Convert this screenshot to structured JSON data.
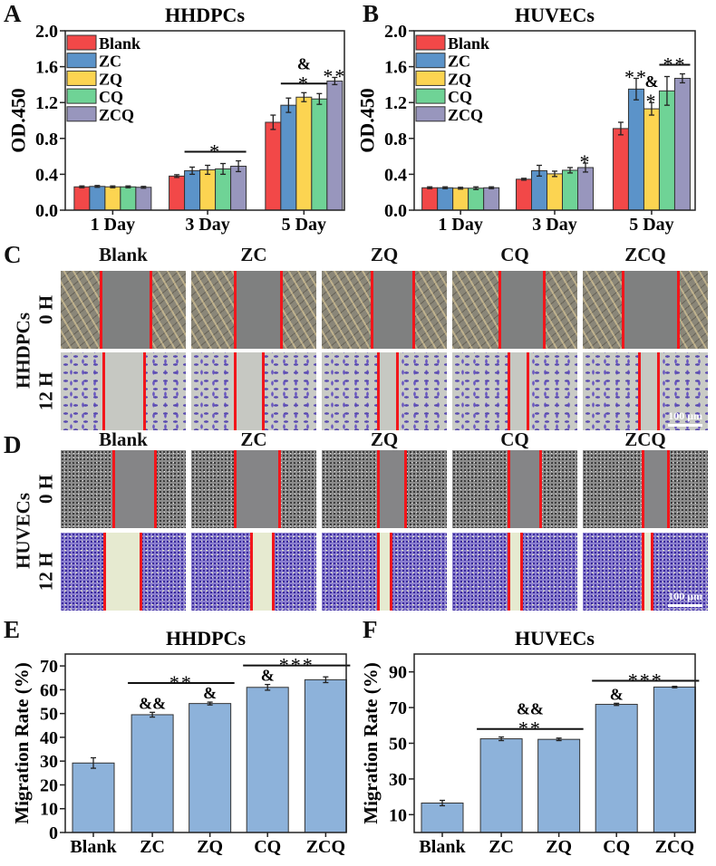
{
  "panel_letters": {
    "A": "A",
    "B": "B",
    "C": "C",
    "D": "D",
    "E": "E",
    "F": "F"
  },
  "groups": [
    "Blank",
    "ZC",
    "ZQ",
    "CQ",
    "ZCQ"
  ],
  "colors": {
    "Blank": "#f24848",
    "ZC": "#5b93c9",
    "ZQ": "#fcd451",
    "CQ": "#6fd396",
    "ZCQ": "#9896bd",
    "migration_bar": "#8db2da",
    "scratch_line": "#f2161b"
  },
  "migration": {
    "C": {
      "cell": "HHDPCs",
      "rows": [
        "0 H",
        "12 H"
      ],
      "columns": [
        "Blank",
        "ZC",
        "ZQ",
        "CQ",
        "ZCQ"
      ],
      "scale_bar": "100 μm"
    },
    "D": {
      "cell": "HUVECs",
      "rows": [
        "0 H",
        "12 H"
      ],
      "columns": [
        "Blank",
        "ZC",
        "ZQ",
        "CQ",
        "ZCQ"
      ],
      "scale_bar": "100 μm"
    }
  },
  "chart_data": [
    {
      "id": "A",
      "type": "bar",
      "title": "HHDPCs",
      "ylabel": "OD.450",
      "xlabel": "",
      "ylim": [
        0,
        2.0
      ],
      "yticks": [
        "0.0",
        "0.4",
        "0.8",
        "1.2",
        "1.6",
        "2.0"
      ],
      "categories": [
        "1 Day",
        "3 Day",
        "5 Day"
      ],
      "legend": "top-left",
      "series": [
        {
          "name": "Blank",
          "values": [
            0.26,
            0.38,
            0.98
          ],
          "errors": [
            0.01,
            0.015,
            0.08
          ]
        },
        {
          "name": "ZC",
          "values": [
            0.265,
            0.44,
            1.17
          ],
          "errors": [
            0.01,
            0.04,
            0.08
          ]
        },
        {
          "name": "ZQ",
          "values": [
            0.26,
            0.45,
            1.26
          ],
          "errors": [
            0.01,
            0.05,
            0.05
          ]
        },
        {
          "name": "CQ",
          "values": [
            0.26,
            0.46,
            1.24
          ],
          "errors": [
            0.01,
            0.06,
            0.06
          ]
        },
        {
          "name": "ZCQ",
          "values": [
            0.255,
            0.49,
            1.44
          ],
          "errors": [
            0.01,
            0.06,
            0.04
          ]
        }
      ],
      "annotations": [
        {
          "category": 1,
          "from": 1,
          "to": 4,
          "labels": [
            "*"
          ],
          "line": true
        },
        {
          "category": 2,
          "from": 1,
          "to": 3,
          "labels": [
            "&",
            "*"
          ],
          "line": true
        },
        {
          "category": 2,
          "from": 4,
          "to": 4,
          "labels": [
            "**"
          ],
          "line": false
        }
      ]
    },
    {
      "id": "B",
      "type": "bar",
      "title": "HUVECs",
      "ylabel": "OD.450",
      "xlabel": "",
      "ylim": [
        0,
        2.0
      ],
      "yticks": [
        "0.0",
        "0.4",
        "0.8",
        "1.2",
        "1.6",
        "2.0"
      ],
      "categories": [
        "1 Day",
        "3 Day",
        "5 Day"
      ],
      "legend": "top-left",
      "series": [
        {
          "name": "Blank",
          "values": [
            0.25,
            0.345,
            0.91
          ],
          "errors": [
            0.01,
            0.01,
            0.07
          ]
        },
        {
          "name": "ZC",
          "values": [
            0.25,
            0.44,
            1.35
          ],
          "errors": [
            0.01,
            0.06,
            0.12
          ]
        },
        {
          "name": "ZQ",
          "values": [
            0.245,
            0.405,
            1.13
          ],
          "errors": [
            0.01,
            0.03,
            0.07
          ]
        },
        {
          "name": "CQ",
          "values": [
            0.245,
            0.445,
            1.33
          ],
          "errors": [
            0.015,
            0.03,
            0.16
          ]
        },
        {
          "name": "ZCQ",
          "values": [
            0.25,
            0.475,
            1.47
          ],
          "errors": [
            0.01,
            0.05,
            0.05
          ]
        }
      ],
      "annotations": [
        {
          "category": 1,
          "from": 4,
          "to": 4,
          "labels": [
            "*"
          ],
          "line": false
        },
        {
          "category": 2,
          "from": 1,
          "to": 1,
          "labels": [
            "**"
          ],
          "line": false
        },
        {
          "category": 2,
          "from": 2,
          "to": 2,
          "labels": [
            "&",
            "*"
          ],
          "line": false
        },
        {
          "category": 2,
          "from": 3,
          "to": 4,
          "labels": [
            "**"
          ],
          "line": true
        }
      ]
    },
    {
      "id": "E",
      "type": "bar",
      "title": "HHDPCs",
      "ylabel": "Migration Rate (%)",
      "xlabel": "",
      "ylim": [
        0,
        75
      ],
      "yticks": [
        "0",
        "10",
        "20",
        "30",
        "40",
        "50",
        "60",
        "70"
      ],
      "categories": [
        "Blank",
        "ZC",
        "ZQ",
        "CQ",
        "ZCQ"
      ],
      "values": [
        29.2,
        49.5,
        54.2,
        61.0,
        64.2
      ],
      "errors": [
        2.2,
        1.0,
        0.6,
        1.2,
        1.2
      ],
      "annotations": [
        {
          "from": 1,
          "to": 2,
          "labels": [
            "**"
          ],
          "line": true,
          "level": 62.8
        },
        {
          "from": 1,
          "to": 1,
          "labels": [
            "&&"
          ],
          "line": false
        },
        {
          "from": 2,
          "to": 2,
          "labels": [
            "&"
          ],
          "line": false
        },
        {
          "from": 3,
          "to": 3,
          "labels": [
            "&"
          ],
          "line": false
        },
        {
          "from": 3,
          "to": 4,
          "labels": [
            "***"
          ],
          "line": true,
          "level": 70.2
        }
      ]
    },
    {
      "id": "F",
      "type": "bar",
      "title": "HUVECs",
      "ylabel": "Migration Rate (%)",
      "xlabel": "",
      "ylim": [
        0,
        100
      ],
      "yticks": [
        "10",
        "30",
        "50",
        "70",
        "90"
      ],
      "categories": [
        "Blank",
        "ZC",
        "ZQ",
        "CQ",
        "ZCQ"
      ],
      "values": [
        16.5,
        52.5,
        52.2,
        71.8,
        81.5
      ],
      "errors": [
        1.5,
        1.0,
        0.7,
        0.6,
        0.4
      ],
      "annotations": [
        {
          "from": 1,
          "to": 2,
          "labels": [
            "&&",
            "**"
          ],
          "line": true,
          "level": 58
        },
        {
          "from": 3,
          "to": 3,
          "labels": [
            "&"
          ],
          "line": false
        },
        {
          "from": 3,
          "to": 4,
          "labels": [
            "***"
          ],
          "line": true,
          "level": 85
        }
      ]
    }
  ]
}
